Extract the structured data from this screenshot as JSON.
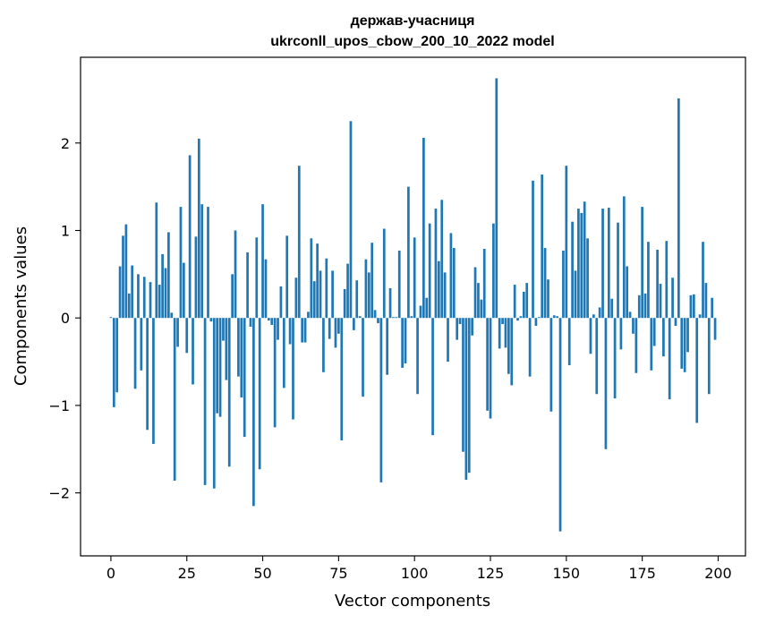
{
  "chart_data": {
    "type": "bar",
    "title_line1": "держав-учасниця",
    "title_line2": "ukrconll_upos_cbow_200_10_2022 model",
    "xlabel": "Vector components",
    "ylabel": "Components values",
    "xlim": [
      -10,
      209
    ],
    "ylim": [
      -2.72,
      2.98
    ],
    "xticks": [
      0,
      25,
      50,
      75,
      100,
      125,
      150,
      175,
      200
    ],
    "yticks": [
      -2,
      -1,
      0,
      1,
      2
    ],
    "ytick_labels": [
      "−2",
      "−1",
      "0",
      "1",
      "2"
    ],
    "bar_color": "#1f77b4",
    "values": [
      0.01,
      -1.02,
      -0.85,
      0.59,
      0.94,
      1.07,
      0.28,
      0.6,
      -0.81,
      0.5,
      -0.6,
      0.47,
      -1.28,
      0.41,
      -1.44,
      1.32,
      0.38,
      0.73,
      0.57,
      0.98,
      0.06,
      -1.86,
      -0.33,
      1.27,
      0.63,
      -0.4,
      1.86,
      -0.76,
      0.93,
      2.05,
      1.3,
      -1.91,
      1.27,
      -0.04,
      -1.95,
      -1.09,
      -1.13,
      -0.26,
      -0.71,
      -1.7,
      0.5,
      1.0,
      -0.67,
      -0.91,
      -1.36,
      0.75,
      -0.1,
      -2.15,
      0.92,
      -1.73,
      1.3,
      0.67,
      -0.03,
      -0.08,
      -1.25,
      -0.25,
      0.36,
      -0.8,
      0.94,
      -0.3,
      -1.16,
      0.46,
      1.74,
      -0.28,
      -0.28,
      0.07,
      0.91,
      0.42,
      0.85,
      0.54,
      -0.62,
      0.68,
      -0.24,
      0.54,
      -0.34,
      -0.18,
      -1.4,
      0.33,
      0.62,
      2.25,
      -0.14,
      0.43,
      0.02,
      -0.9,
      0.67,
      0.52,
      0.86,
      0.09,
      -0.06,
      -1.88,
      1.02,
      -0.65,
      0.34,
      0.01,
      0.01,
      0.77,
      -0.57,
      -0.52,
      1.5,
      0.02,
      0.92,
      -0.87,
      0.14,
      2.06,
      0.23,
      1.08,
      -1.34,
      1.25,
      0.65,
      1.35,
      0.52,
      -0.5,
      0.97,
      0.8,
      -0.25,
      -0.07,
      -1.53,
      -1.85,
      -1.77,
      -0.2,
      0.58,
      0.4,
      0.21,
      0.79,
      -1.06,
      -1.15,
      1.08,
      2.74,
      -0.35,
      -0.07,
      -0.34,
      -0.64,
      -0.77,
      0.38,
      -0.03,
      0.02,
      0.3,
      0.4,
      -0.67,
      1.57,
      -0.09,
      0.01,
      1.64,
      0.8,
      0.44,
      -1.07,
      0.03,
      0.02,
      -2.44,
      0.77,
      1.74,
      -0.54,
      1.1,
      0.54,
      1.25,
      1.2,
      1.33,
      0.91,
      -0.41,
      0.04,
      -0.87,
      0.12,
      1.25,
      -1.5,
      1.26,
      0.22,
      -0.92,
      1.09,
      -0.36,
      1.39,
      0.59,
      0.07,
      -0.18,
      -0.63,
      0.26,
      1.27,
      0.28,
      0.87,
      -0.6,
      -0.32,
      0.78,
      0.39,
      -0.44,
      0.88,
      -0.93,
      0.46,
      -0.09,
      2.51,
      -0.58,
      -0.62,
      -0.39,
      0.26,
      0.27,
      -1.2,
      0.04,
      0.87,
      0.4,
      -0.87,
      0.23,
      -0.25
    ]
  }
}
